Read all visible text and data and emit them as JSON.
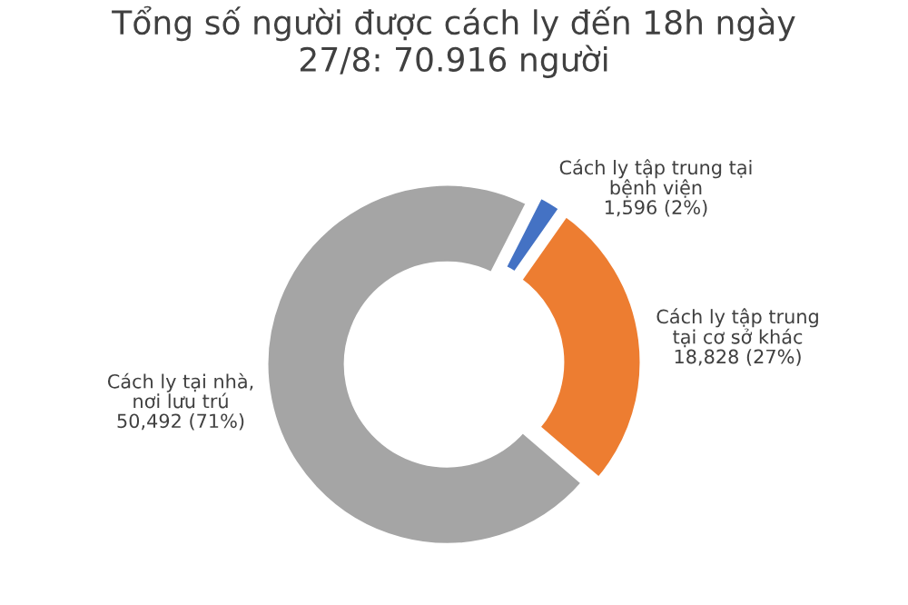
{
  "chart_data": {
    "type": "donut",
    "title": "Tổng số người được cách ly đến 18h ngày\n27/8: 70.916 người",
    "categories": [
      "Cách ly tập trung tại\nbệnh viện",
      "Cách ly tập trung\ntại cơ sở khác",
      "Cách ly tại nhà,\nnơi lưu trú"
    ],
    "values": [
      1596,
      18828,
      50492
    ],
    "value_labels": [
      "1,596 (2%)",
      "18,828 (27%)",
      "50,492 (71%)"
    ],
    "colors": [
      "#4472c4",
      "#ed7d31",
      "#a5a5a5"
    ],
    "legend": false
  }
}
